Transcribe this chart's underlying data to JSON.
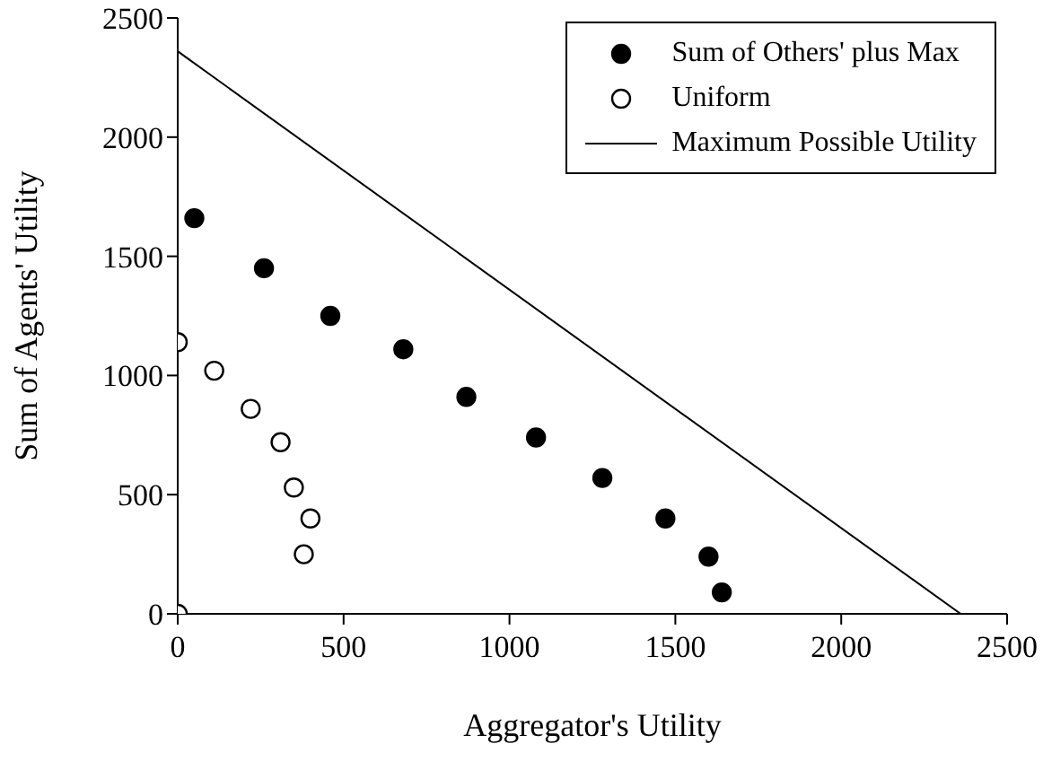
{
  "chart_data": {
    "type": "scatter",
    "xlabel": "Aggregator's Utility",
    "ylabel": "Sum of Agents' Utility",
    "xlim": [
      0,
      2500
    ],
    "xticks": [
      0,
      500,
      1000,
      1500,
      2000,
      2500
    ],
    "ylim": [
      0,
      2500
    ],
    "yticks": [
      0,
      500,
      1000,
      1500,
      2000,
      2500
    ],
    "grid": false,
    "legend": "top right",
    "series": [
      {
        "name": "Sum of Others' plus Max",
        "marker": "circle",
        "color": "#000000",
        "x": [
          50,
          260,
          460,
          680,
          870,
          1080,
          1280,
          1470,
          1600,
          1640
        ],
        "values": [
          1660,
          1450,
          1250,
          1110,
          910,
          740,
          570,
          400,
          240,
          90
        ]
      },
      {
        "name": "Uniform",
        "marker": "circle",
        "color": "#ffffff",
        "x": [
          0,
          110,
          220,
          310,
          350,
          400,
          380,
          0
        ],
        "values": [
          1140,
          1020,
          860,
          720,
          530,
          400,
          250,
          0
        ]
      },
      {
        "name": "Maximum Possible Utility",
        "type": "line",
        "marker": "none",
        "color": "#000000",
        "line_style": "solid",
        "x": [
          0,
          2360
        ],
        "values": [
          2360,
          0
        ]
      }
    ]
  }
}
